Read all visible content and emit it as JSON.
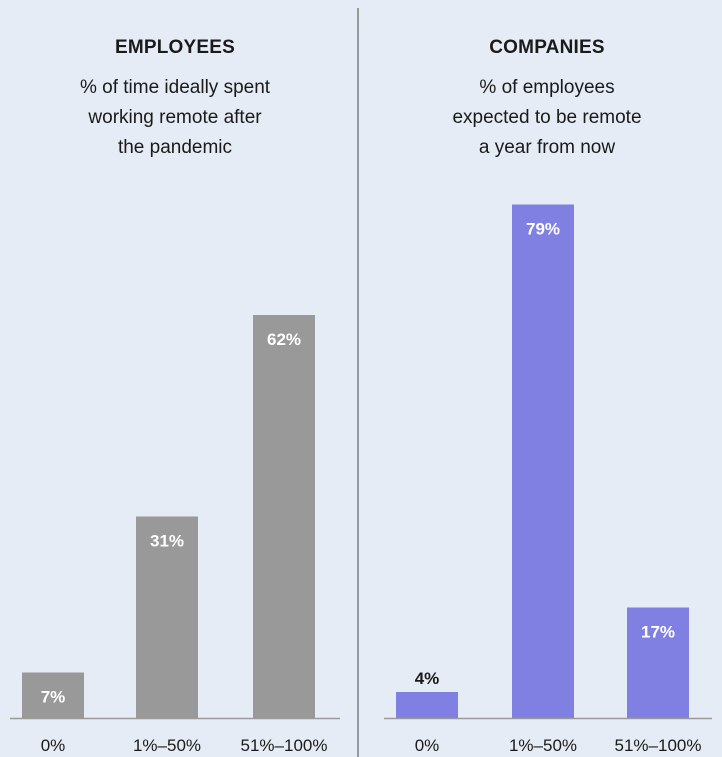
{
  "chart_data": [
    {
      "type": "bar",
      "title": "EMPLOYEES",
      "subtitle": "% of time ideally spent\nworking remote after\nthe pandemic",
      "categories": [
        "0%",
        "1%–50%",
        "51%–100%"
      ],
      "values": [
        7,
        31,
        62
      ],
      "data_labels": [
        "7%",
        "31%",
        "62%"
      ],
      "color": "#999999",
      "ylim": [
        0,
        100
      ],
      "grid": false
    },
    {
      "type": "bar",
      "title": "COMPANIES",
      "subtitle": "% of employees\nexpected to be remote\na year from now",
      "categories": [
        "0%",
        "1%–50%",
        "51%–100%"
      ],
      "values": [
        4,
        79,
        17
      ],
      "data_labels": [
        "4%",
        "79%",
        "17%"
      ],
      "color": "#8080e3",
      "ylim": [
        0,
        100
      ],
      "grid": false
    }
  ],
  "colors": {
    "background": "#e6ecf5",
    "divider": "#9a9a9a",
    "axis": "#9a9a9a"
  }
}
